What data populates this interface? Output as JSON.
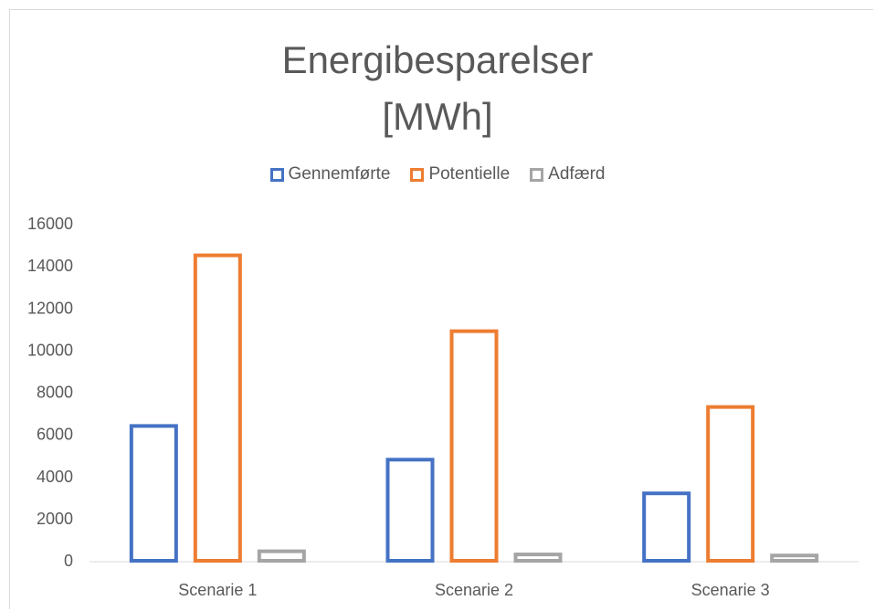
{
  "chart_data": {
    "type": "bar",
    "title_line1": "Energibesparelser",
    "title_line2": "[MWh]",
    "categories": [
      "Scenarie 1",
      "Scenarie 2",
      "Scenarie 3"
    ],
    "series": [
      {
        "name": "Gennemførte",
        "values": [
          6400,
          4800,
          3200
        ],
        "color": "#4472c4"
      },
      {
        "name": "Potentielle",
        "values": [
          14500,
          10900,
          7300
        ],
        "color": "#ed7d31"
      },
      {
        "name": "Adfærd",
        "values": [
          450,
          300,
          250
        ],
        "color": "#a5a5a5"
      }
    ],
    "y_ticks": [
      "0",
      "2000",
      "4000",
      "6000",
      "8000",
      "10000",
      "12000",
      "14000",
      "16000"
    ],
    "ylim": [
      0,
      16000
    ],
    "legend_position": "top",
    "grid": false
  }
}
